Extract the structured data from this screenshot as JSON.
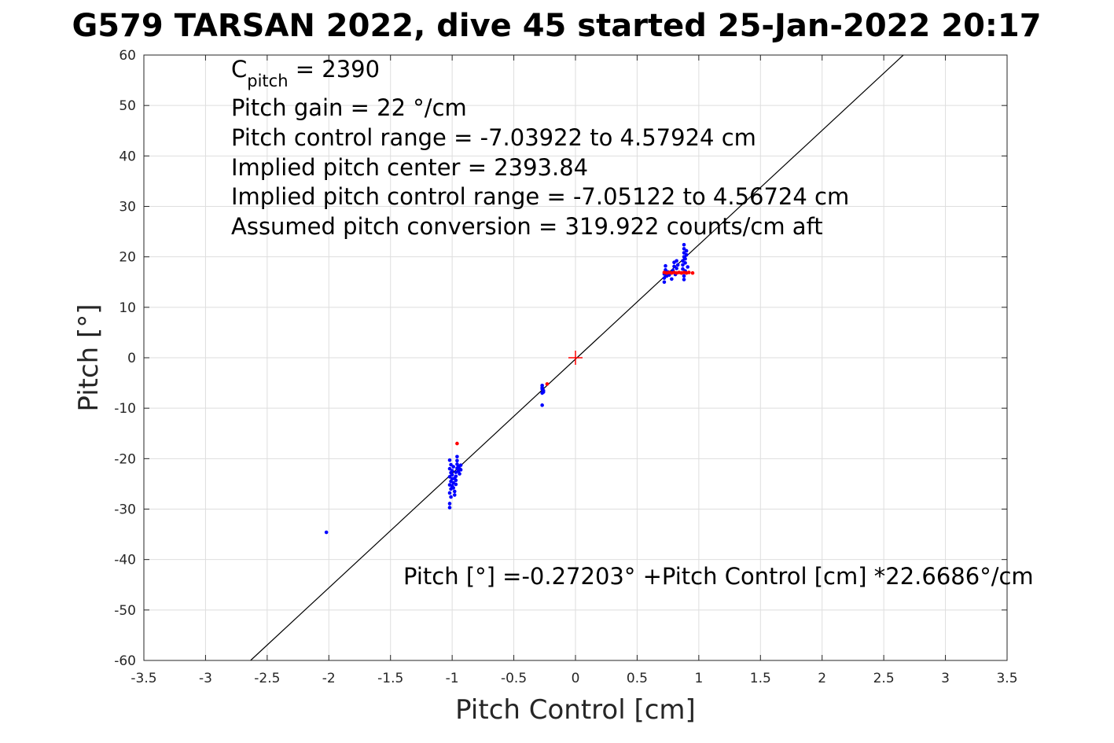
{
  "chart_data": {
    "type": "scatter",
    "title": "G579 TARSAN 2022, dive 45 started 25-Jan-2022 20:17",
    "xlabel": "Pitch Control [cm]",
    "ylabel": "Pitch [°]",
    "xlim": [
      -3.5,
      3.5
    ],
    "ylim": [
      -60,
      60
    ],
    "xticks": [
      "-3.5",
      "-3",
      "-2.5",
      "-2",
      "-1.5",
      "-1",
      "-0.5",
      "0",
      "0.5",
      "1",
      "1.5",
      "2",
      "2.5",
      "3",
      "3.5"
    ],
    "yticks": [
      "60",
      "50",
      "40",
      "30",
      "20",
      "10",
      "0",
      "-10",
      "-20",
      "-30",
      "-40",
      "-50",
      "-60"
    ],
    "grid": true,
    "annotations": {
      "c_pitch_main": "C",
      "c_pitch_sub": "pitch",
      "c_pitch_value": " = 2390",
      "pitch_gain": "Pitch gain = 22 °/cm",
      "pitch_control_range": "Pitch control range = -7.03922 to 4.57924 cm",
      "implied_center": "Implied pitch center = 2393.84",
      "implied_range": "Implied pitch control range = -7.05122 to 4.56724 cm",
      "assumed_conversion": "Assumed pitch conversion = 319.922 counts/cm aft",
      "fit_equation": "Pitch [°] =-0.27203° +Pitch Control [cm] *22.6686°/cm"
    },
    "fit_line": {
      "intercept": -0.27203,
      "slope": 22.6686,
      "color": "#000000"
    },
    "center_marker": {
      "x": 0,
      "y": 0,
      "color": "#ff0000"
    },
    "series": [
      {
        "color": "#0000ff",
        "points": [
          [
            -2.02,
            -34.6
          ],
          [
            -0.27,
            -9.4
          ],
          [
            -0.27,
            -5.5
          ],
          [
            -0.27,
            -6.2
          ],
          [
            -0.26,
            -6.8
          ],
          [
            -0.27,
            -5.9
          ],
          [
            -0.26,
            -6.5
          ],
          [
            -0.27,
            -7.0
          ],
          [
            -1.02,
            -29.7
          ],
          [
            -1.02,
            -28.9
          ],
          [
            -1.01,
            -27.6
          ],
          [
            -1.02,
            -26.8
          ],
          [
            -1.01,
            -26.0
          ],
          [
            -1.02,
            -25.2
          ],
          [
            -1.01,
            -24.5
          ],
          [
            -1.02,
            -23.6
          ],
          [
            -1.01,
            -22.8
          ],
          [
            -1.02,
            -22.0
          ],
          [
            -1.01,
            -21.2
          ],
          [
            -1.02,
            -20.3
          ],
          [
            -1.0,
            -24.0
          ],
          [
            -1.0,
            -23.2
          ],
          [
            -1.0,
            -22.4
          ],
          [
            -0.99,
            -21.6
          ],
          [
            -0.99,
            -25.8
          ],
          [
            -0.98,
            -26.5
          ],
          [
            -0.98,
            -27.2
          ],
          [
            -0.97,
            -24.3
          ],
          [
            -0.97,
            -23.5
          ],
          [
            -0.97,
            -22.7
          ],
          [
            -0.96,
            -21.9
          ],
          [
            -0.96,
            -21.1
          ],
          [
            -0.96,
            -20.4
          ],
          [
            -0.96,
            -19.6
          ],
          [
            -0.95,
            -22.5
          ],
          [
            -0.95,
            -21.5
          ],
          [
            -0.94,
            -23.0
          ],
          [
            -0.94,
            -22.0
          ],
          [
            -0.93,
            -21.3
          ],
          [
            -0.93,
            -22.2
          ],
          [
            -0.99,
            -24.8
          ],
          [
            -1.0,
            -25.4
          ],
          [
            -0.98,
            -23.9
          ],
          [
            -0.97,
            -25.1
          ],
          [
            0.72,
            15.0
          ],
          [
            0.72,
            15.8
          ],
          [
            0.72,
            16.6
          ],
          [
            0.73,
            17.4
          ],
          [
            0.73,
            18.2
          ],
          [
            0.74,
            16.2
          ],
          [
            0.75,
            17.0
          ],
          [
            0.76,
            16.4
          ],
          [
            0.79,
            17.3
          ],
          [
            0.8,
            18.1
          ],
          [
            0.8,
            18.9
          ],
          [
            0.81,
            16.5
          ],
          [
            0.82,
            17.7
          ],
          [
            0.82,
            19.2
          ],
          [
            0.83,
            18.4
          ],
          [
            0.78,
            15.6
          ],
          [
            0.86,
            16.8
          ],
          [
            0.87,
            17.6
          ],
          [
            0.87,
            18.4
          ],
          [
            0.87,
            19.2
          ],
          [
            0.88,
            20.0
          ],
          [
            0.88,
            20.8
          ],
          [
            0.88,
            21.6
          ],
          [
            0.88,
            22.4
          ],
          [
            0.89,
            19.6
          ],
          [
            0.89,
            18.8
          ],
          [
            0.89,
            17.2
          ],
          [
            0.9,
            20.4
          ],
          [
            0.9,
            21.2
          ],
          [
            0.88,
            15.5
          ],
          [
            0.88,
            16.2
          ],
          [
            0.91,
            18.0
          ]
        ]
      },
      {
        "color": "#ff0000",
        "points": [
          [
            -0.96,
            -17.0
          ],
          [
            -0.23,
            -5.2
          ],
          [
            0.72,
            16.9
          ],
          [
            0.74,
            16.8
          ],
          [
            0.76,
            16.9
          ],
          [
            0.78,
            16.8
          ],
          [
            0.8,
            16.9
          ],
          [
            0.82,
            16.8
          ],
          [
            0.84,
            16.9
          ],
          [
            0.86,
            16.8
          ],
          [
            0.88,
            16.9
          ],
          [
            0.9,
            16.8
          ],
          [
            0.92,
            16.9
          ],
          [
            0.95,
            16.8
          ]
        ]
      }
    ]
  }
}
